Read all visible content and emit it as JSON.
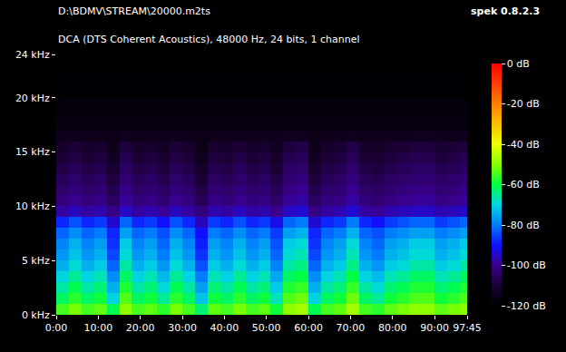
{
  "chart_data": {
    "type": "heatmap",
    "title": "D:\\BDMV\\STREAM\\20000.m2ts",
    "subtitle": "DCA (DTS Coherent Acoustics), 48000 Hz, 24 bits, 1 channel",
    "annotations": [
      "spek 0.8.2.3"
    ],
    "xlim": [
      0,
      97.75
    ],
    "xticks": [
      {
        "value": 0,
        "label": "0:00"
      },
      {
        "value": 10,
        "label": "10:00"
      },
      {
        "value": 20,
        "label": "20:00"
      },
      {
        "value": 30,
        "label": "30:00"
      },
      {
        "value": 40,
        "label": "40:00"
      },
      {
        "value": 50,
        "label": "50:00"
      },
      {
        "value": 60,
        "label": "60:00"
      },
      {
        "value": 70,
        "label": "70:00"
      },
      {
        "value": 80,
        "label": "80:00"
      },
      {
        "value": 90,
        "label": "90:00"
      },
      {
        "value": 97.75,
        "label": "97:45"
      }
    ],
    "ylim": [
      0,
      24
    ],
    "yticks": [
      {
        "value": 0,
        "label": "0 kHz"
      },
      {
        "value": 5,
        "label": "5 kHz"
      },
      {
        "value": 10,
        "label": "10 kHz"
      },
      {
        "value": 15,
        "label": "15 kHz"
      },
      {
        "value": 20,
        "label": "20 kHz"
      },
      {
        "value": 24,
        "label": "24 kHz"
      }
    ],
    "x": [
      1.5,
      4.5,
      7.5,
      10.5,
      13.5,
      16.5,
      19.5,
      22.5,
      25.5,
      28.5,
      31.5,
      34.5,
      37.5,
      40.5,
      43.5,
      46.5,
      49.5,
      52.5,
      55.5,
      58.5,
      61.5,
      64.5,
      67.5,
      70.5,
      73.5,
      76.5,
      79.5,
      82.5,
      85.5,
      88.5,
      91.5,
      94.5,
      97.5
    ],
    "y": [
      0.5,
      1.5,
      2.5,
      3.5,
      4.5,
      5.5,
      6.5,
      7.5,
      8.5,
      9.5,
      10.5,
      11.5,
      12.5,
      13.5,
      14.5,
      15.5,
      16.5,
      17.5,
      18.5,
      19.5,
      20.5,
      21.5,
      22.5,
      23.5
    ],
    "cells": [
      [
        -55,
        -51,
        -55,
        -53,
        -61,
        -49,
        -55,
        -53,
        -57,
        -51,
        -55,
        -63,
        -53,
        -55,
        -51,
        -55,
        -53,
        -59,
        -49,
        -47,
        -61,
        -55,
        -53,
        -47,
        -55,
        -57,
        -53,
        -51,
        -49,
        -49,
        -53,
        -51,
        -49
      ],
      [
        -62,
        -57,
        -62,
        -59,
        -70,
        -54,
        -62,
        -59,
        -65,
        -57,
        -62,
        -72,
        -59,
        -62,
        -57,
        -62,
        -59,
        -67,
        -54,
        -52,
        -70,
        -62,
        -59,
        -52,
        -62,
        -65,
        -59,
        -57,
        -54,
        -54,
        -59,
        -57,
        -54
      ],
      [
        -66,
        -61,
        -66,
        -63,
        -74,
        -58,
        -66,
        -63,
        -69,
        -61,
        -66,
        -76,
        -63,
        -66,
        -61,
        -66,
        -63,
        -71,
        -58,
        -56,
        -74,
        -66,
        -63,
        -56,
        -66,
        -69,
        -63,
        -61,
        -58,
        -58,
        -63,
        -61,
        -58
      ],
      [
        -70,
        -65,
        -70,
        -67,
        -78,
        -62,
        -70,
        -67,
        -73,
        -65,
        -70,
        -80,
        -67,
        -70,
        -65,
        -70,
        -67,
        -75,
        -62,
        -60,
        -78,
        -70,
        -67,
        -60,
        -70,
        -73,
        -67,
        -65,
        -62,
        -62,
        -67,
        -65,
        -62
      ],
      [
        -74,
        -69,
        -74,
        -71,
        -82,
        -66,
        -74,
        -71,
        -77,
        -69,
        -74,
        -84,
        -71,
        -74,
        -69,
        -74,
        -71,
        -79,
        -66,
        -64,
        -82,
        -74,
        -71,
        -64,
        -74,
        -77,
        -71,
        -69,
        -66,
        -66,
        -71,
        -69,
        -66
      ],
      [
        -77,
        -72,
        -77,
        -74,
        -85,
        -69,
        -77,
        -74,
        -80,
        -72,
        -77,
        -87,
        -74,
        -77,
        -72,
        -77,
        -74,
        -82,
        -69,
        -67,
        -85,
        -77,
        -74,
        -67,
        -77,
        -80,
        -74,
        -72,
        -69,
        -69,
        -74,
        -72,
        -69
      ],
      [
        -79,
        -74,
        -79,
        -76,
        -87,
        -71,
        -79,
        -76,
        -82,
        -74,
        -79,
        -89,
        -76,
        -79,
        -74,
        -79,
        -76,
        -84,
        -71,
        -69,
        -87,
        -79,
        -76,
        -69,
        -79,
        -82,
        -76,
        -74,
        -71,
        -71,
        -76,
        -74,
        -71
      ],
      [
        -82,
        -78,
        -82,
        -80,
        -88,
        -76,
        -82,
        -80,
        -84,
        -78,
        -82,
        -90,
        -80,
        -82,
        -78,
        -82,
        -80,
        -86,
        -76,
        -74,
        -88,
        -82,
        -80,
        -74,
        -82,
        -84,
        -80,
        -78,
        -76,
        -76,
        -80,
        -78,
        -76
      ],
      [
        -88,
        -84,
        -88,
        -86,
        -94,
        -82,
        -88,
        -86,
        -90,
        -84,
        -88,
        -96,
        -86,
        -88,
        -84,
        -88,
        -86,
        -92,
        -82,
        -80,
        -94,
        -88,
        -86,
        -80,
        -88,
        -90,
        -86,
        -84,
        -82,
        -82,
        -86,
        -84,
        -82
      ],
      [
        -98,
        -96,
        -98,
        -97,
        -101,
        -95,
        -98,
        -97,
        -99,
        -96,
        -98,
        -102,
        -97,
        -98,
        -96,
        -98,
        -97,
        -100,
        -95,
        -94,
        -101,
        -98,
        -97,
        -94,
        -98,
        -99,
        -97,
        -96,
        -95,
        -95,
        -97,
        -96,
        -95
      ],
      [
        -102,
        -100,
        -102,
        -101,
        -105,
        -99,
        -102,
        -101,
        -103,
        -100,
        -102,
        -106,
        -101,
        -102,
        -100,
        -102,
        -101,
        -104,
        -99,
        -98,
        -105,
        -102,
        -101,
        -98,
        -102,
        -103,
        -101,
        -100,
        -99,
        -99,
        -101,
        -100,
        -99
      ],
      [
        -104,
        -102,
        -104,
        -103,
        -107,
        -101,
        -104,
        -103,
        -105,
        -102,
        -104,
        -108,
        -103,
        -104,
        -102,
        -104,
        -103,
        -106,
        -101,
        -100,
        -107,
        -104,
        -103,
        -100,
        -104,
        -105,
        -103,
        -102,
        -101,
        -101,
        -103,
        -102,
        -101
      ],
      [
        -106,
        -104,
        -106,
        -105,
        -109,
        -103,
        -106,
        -105,
        -107,
        -104,
        -106,
        -110,
        -105,
        -106,
        -104,
        -106,
        -105,
        -108,
        -103,
        -102,
        -109,
        -106,
        -105,
        -102,
        -106,
        -107,
        -105,
        -104,
        -103,
        -103,
        -105,
        -104,
        -103
      ],
      [
        -108,
        -106,
        -108,
        -107,
        -111,
        -105,
        -108,
        -107,
        -109,
        -106,
        -108,
        -112,
        -107,
        -108,
        -106,
        -108,
        -107,
        -110,
        -105,
        -104,
        -111,
        -108,
        -107,
        -104,
        -108,
        -109,
        -107,
        -106,
        -105,
        -105,
        -107,
        -106,
        -105
      ],
      [
        -110,
        -108,
        -110,
        -109,
        -113,
        -107,
        -110,
        -109,
        -111,
        -108,
        -110,
        -114,
        -109,
        -110,
        -108,
        -110,
        -109,
        -112,
        -107,
        -106,
        -113,
        -110,
        -109,
        -106,
        -110,
        -111,
        -109,
        -108,
        -107,
        -107,
        -109,
        -108,
        -107
      ],
      [
        -112,
        -110,
        -112,
        -111,
        -115,
        -109,
        -112,
        -111,
        -113,
        -110,
        -112,
        -116,
        -111,
        -112,
        -110,
        -112,
        -111,
        -114,
        -109,
        -108,
        -115,
        -112,
        -111,
        -108,
        -112,
        -113,
        -111,
        -110,
        -109,
        -109,
        -111,
        -110,
        -109
      ],
      [
        -115,
        -115,
        -115,
        -115,
        -116,
        -114,
        -115,
        -115,
        -115,
        -115,
        -115,
        -116,
        -115,
        -115,
        -115,
        -115,
        -115,
        -115,
        -114,
        -114,
        -116,
        -115,
        -115,
        -114,
        -115,
        -115,
        -115,
        -115,
        -114,
        -114,
        -115,
        -115,
        -114
      ],
      [
        -117,
        -117,
        -117,
        -117,
        -117,
        -117,
        -117,
        -117,
        -117,
        -117,
        -117,
        -117,
        -117,
        -117,
        -117,
        -117,
        -117,
        -117,
        -117,
        -117,
        -117,
        -117,
        -117,
        -117,
        -117,
        -117,
        -117,
        -117,
        -117,
        -117,
        -117,
        -117,
        -117
      ],
      [
        -118,
        -118,
        -118,
        -118,
        -118,
        -118,
        -118,
        -118,
        -118,
        -118,
        -118,
        -118,
        -118,
        -118,
        -118,
        -118,
        -118,
        -118,
        -118,
        -118,
        -118,
        -118,
        -118,
        -118,
        -118,
        -118,
        -118,
        -118,
        -118,
        -118,
        -118,
        -118,
        -118
      ],
      [
        -118,
        -118,
        -118,
        -118,
        -118,
        -118,
        -118,
        -118,
        -118,
        -118,
        -118,
        -118,
        -118,
        -118,
        -118,
        -118,
        -118,
        -118,
        -118,
        -118,
        -118,
        -118,
        -118,
        -118,
        -118,
        -118,
        -118,
        -118,
        -118,
        -118,
        -118,
        -118,
        -118
      ],
      [
        -119,
        -119,
        -119,
        -119,
        -119,
        -119,
        -119,
        -119,
        -119,
        -119,
        -119,
        -119,
        -119,
        -119,
        -119,
        -119,
        -119,
        -119,
        -119,
        -119,
        -119,
        -119,
        -119,
        -119,
        -119,
        -119,
        -119,
        -119,
        -119,
        -119,
        -119,
        -119,
        -119
      ],
      [
        -119,
        -119,
        -119,
        -119,
        -119,
        -119,
        -119,
        -119,
        -119,
        -119,
        -119,
        -119,
        -119,
        -119,
        -119,
        -119,
        -119,
        -119,
        -119,
        -119,
        -119,
        -119,
        -119,
        -119,
        -119,
        -119,
        -119,
        -119,
        -119,
        -119,
        -119,
        -119,
        -119
      ],
      [
        -120,
        -120,
        -120,
        -120,
        -120,
        -120,
        -120,
        -120,
        -120,
        -120,
        -120,
        -120,
        -120,
        -120,
        -120,
        -120,
        -120,
        -120,
        -120,
        -120,
        -120,
        -120,
        -120,
        -120,
        -120,
        -120,
        -120,
        -120,
        -120,
        -120,
        -120,
        -120,
        -120
      ],
      [
        -120,
        -120,
        -120,
        -120,
        -120,
        -120,
        -120,
        -120,
        -120,
        -120,
        -120,
        -120,
        -120,
        -120,
        -120,
        -120,
        -120,
        -120,
        -120,
        -120,
        -120,
        -120,
        -120,
        -120,
        -120,
        -120,
        -120,
        -120,
        -120,
        -120,
        -120,
        -120,
        -120
      ]
    ],
    "colorbar": {
      "range": [
        -120,
        0
      ],
      "ticks": [
        {
          "value": 0,
          "label": "0 dB"
        },
        {
          "value": -20,
          "label": "-20 dB"
        },
        {
          "value": -40,
          "label": "-40 dB"
        },
        {
          "value": -60,
          "label": "-60 dB"
        },
        {
          "value": -80,
          "label": "-80 dB"
        },
        {
          "value": -100,
          "label": "-100 dB"
        },
        {
          "value": -120,
          "label": "-120 dB"
        }
      ]
    }
  }
}
